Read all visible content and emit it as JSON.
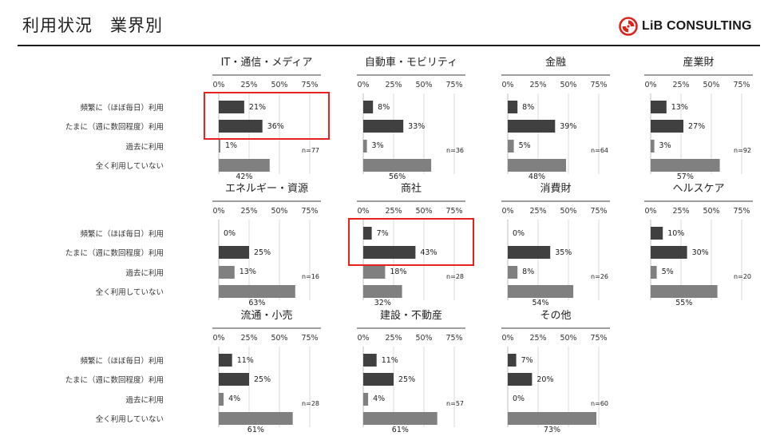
{
  "page": {
    "title": "利用状況　業界別",
    "logo_text": "LiB CONSULTING",
    "colors": {
      "dark_bar": "#404040",
      "gray_bar": "#808080",
      "highlight": "#e8211d",
      "rule": "#1a1a1a",
      "logo_red": "#d9261c"
    }
  },
  "chart_data": [
    {
      "type": "bar",
      "title": "IT・通信・メディア",
      "categories": [
        "頻繁に（ほぼ毎日）利用",
        "たまに（週に数回程度）利用",
        "過去に利用",
        "全く利用していない"
      ],
      "values": [
        21,
        36,
        1,
        42
      ],
      "value_labels": [
        "21%",
        "36%",
        "1%",
        "42%"
      ],
      "n_label": "n=77",
      "xticks": [
        "0%",
        "25%",
        "50%",
        "75%"
      ],
      "xlim": [
        0,
        75
      ],
      "highlighted": [
        0,
        1
      ]
    },
    {
      "type": "bar",
      "title": "自動車・モビリティ",
      "categories": [
        "頻繁に（ほぼ毎日）利用",
        "たまに（週に数回程度）利用",
        "過去に利用",
        "全く利用していない"
      ],
      "values": [
        8,
        33,
        3,
        56
      ],
      "value_labels": [
        "8%",
        "33%",
        "3%",
        "56%"
      ],
      "n_label": "n=36",
      "xticks": [
        "0%",
        "25%",
        "50%",
        "75%"
      ],
      "xlim": [
        0,
        75
      ],
      "highlighted": []
    },
    {
      "type": "bar",
      "title": "金融",
      "categories": [
        "頻繁に（ほぼ毎日）利用",
        "たまに（週に数回程度）利用",
        "過去に利用",
        "全く利用していない"
      ],
      "values": [
        8,
        39,
        5,
        48
      ],
      "value_labels": [
        "8%",
        "39%",
        "5%",
        "48%"
      ],
      "n_label": "n=64",
      "xticks": [
        "0%",
        "25%",
        "50%",
        "75%"
      ],
      "xlim": [
        0,
        75
      ],
      "highlighted": []
    },
    {
      "type": "bar",
      "title": "産業財",
      "categories": [
        "頻繁に（ほぼ毎日）利用",
        "たまに（週に数回程度）利用",
        "過去に利用",
        "全く利用していない"
      ],
      "values": [
        13,
        27,
        3,
        57
      ],
      "value_labels": [
        "13%",
        "27%",
        "3%",
        "57%"
      ],
      "n_label": "n=92",
      "xticks": [
        "0%",
        "25%",
        "50%",
        "75%"
      ],
      "xlim": [
        0,
        75
      ],
      "highlighted": []
    },
    {
      "type": "bar",
      "title": "エネルギー・資源",
      "categories": [
        "頻繁に（ほぼ毎日）利用",
        "たまに（週に数回程度）利用",
        "過去に利用",
        "全く利用していない"
      ],
      "values": [
        0,
        25,
        13,
        63
      ],
      "value_labels": [
        "0%",
        "25%",
        "13%",
        "63%"
      ],
      "n_label": "n=16",
      "xticks": [
        "0%",
        "25%",
        "50%",
        "75%"
      ],
      "xlim": [
        0,
        75
      ],
      "highlighted": []
    },
    {
      "type": "bar",
      "title": "商社",
      "categories": [
        "頻繁に（ほぼ毎日）利用",
        "たまに（週に数回程度）利用",
        "過去に利用",
        "全く利用していない"
      ],
      "values": [
        7,
        43,
        18,
        32
      ],
      "value_labels": [
        "7%",
        "43%",
        "18%",
        "32%"
      ],
      "n_label": "n=28",
      "xticks": [
        "0%",
        "25%",
        "50%",
        "75%"
      ],
      "xlim": [
        0,
        75
      ],
      "highlighted": [
        0,
        1
      ]
    },
    {
      "type": "bar",
      "title": "消費財",
      "categories": [
        "頻繁に（ほぼ毎日）利用",
        "たまに（週に数回程度）利用",
        "過去に利用",
        "全く利用していない"
      ],
      "values": [
        0,
        35,
        8,
        54
      ],
      "value_labels": [
        "0%",
        "35%",
        "8%",
        "54%"
      ],
      "n_label": "n=26",
      "xticks": [
        "0%",
        "25%",
        "50%",
        "75%"
      ],
      "xlim": [
        0,
        75
      ],
      "highlighted": []
    },
    {
      "type": "bar",
      "title": "ヘルスケア",
      "categories": [
        "頻繁に（ほぼ毎日）利用",
        "たまに（週に数回程度）利用",
        "過去に利用",
        "全く利用していない"
      ],
      "values": [
        10,
        30,
        5,
        55
      ],
      "value_labels": [
        "10%",
        "30%",
        "5%",
        "55%"
      ],
      "n_label": "n=20",
      "xticks": [
        "0%",
        "25%",
        "50%",
        "75%"
      ],
      "xlim": [
        0,
        75
      ],
      "highlighted": []
    },
    {
      "type": "bar",
      "title": "流通・小売",
      "categories": [
        "頻繁に（ほぼ毎日）利用",
        "たまに（週に数回程度）利用",
        "過去に利用",
        "全く利用していない"
      ],
      "values": [
        11,
        25,
        4,
        61
      ],
      "value_labels": [
        "11%",
        "25%",
        "4%",
        "61%"
      ],
      "n_label": "n=28",
      "xticks": [
        "0%",
        "25%",
        "50%",
        "75%"
      ],
      "xlim": [
        0,
        75
      ],
      "highlighted": []
    },
    {
      "type": "bar",
      "title": "建設・不動産",
      "categories": [
        "頻繁に（ほぼ毎日）利用",
        "たまに（週に数回程度）利用",
        "過去に利用",
        "全く利用していない"
      ],
      "values": [
        11,
        25,
        4,
        61
      ],
      "value_labels": [
        "11%",
        "25%",
        "4%",
        "61%"
      ],
      "n_label": "n=57",
      "xticks": [
        "0%",
        "25%",
        "50%",
        "75%"
      ],
      "xlim": [
        0,
        75
      ],
      "highlighted": []
    },
    {
      "type": "bar",
      "title": "その他",
      "categories": [
        "頻繁に（ほぼ毎日）利用",
        "たまに（週に数回程度）利用",
        "過去に利用",
        "全く利用していない"
      ],
      "values": [
        7,
        20,
        0,
        73
      ],
      "value_labels": [
        "7%",
        "20%",
        "0%",
        "73%"
      ],
      "n_label": "n=60",
      "xticks": [
        "0%",
        "25%",
        "50%",
        "75%"
      ],
      "xlim": [
        0,
        75
      ],
      "highlighted": []
    }
  ]
}
